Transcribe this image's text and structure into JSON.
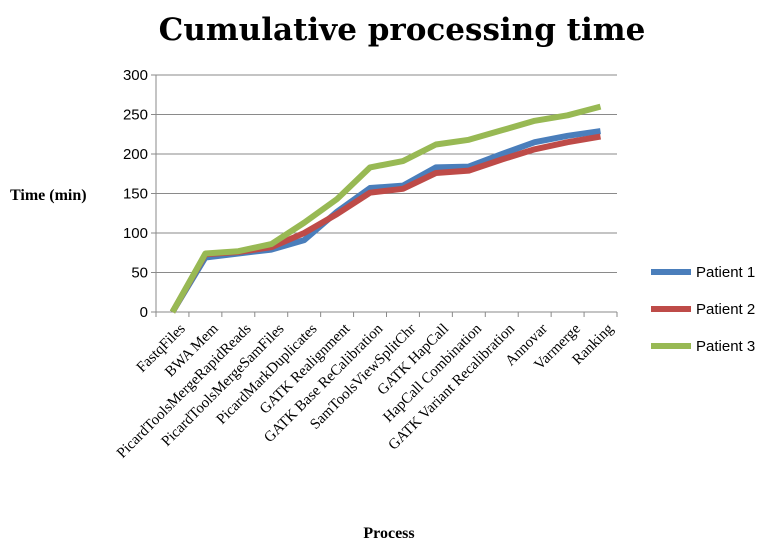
{
  "chart_data": {
    "type": "line",
    "title": "Cumulative processing time",
    "xlabel": "Process",
    "ylabel": "Time (min)",
    "ylim": [
      0,
      300
    ],
    "yticks": [
      0,
      50,
      100,
      150,
      200,
      250,
      300
    ],
    "grid": true,
    "legend_position": "right",
    "categories": [
      "FastqFiles",
      "BWA Mem",
      "PicardToolsMergeRapidReads",
      "PicardToolsMergeSamFiles",
      "PicardMarkDuplicates",
      "GATK Realignment",
      "GATK Base ReCalibration",
      "SamToolsViewSplitChr",
      "GATK HapCall",
      "HapCall Combination",
      "GATK Variant Recalibration",
      "Annovar",
      "Varmerge",
      "Ranking"
    ],
    "series": [
      {
        "name": "Patient 1",
        "color": "#4a7ebb",
        "values": [
          0,
          69,
          74,
          79,
          91,
          127,
          157,
          160,
          183,
          184,
          200,
          215,
          223,
          229
        ]
      },
      {
        "name": "Patient 2",
        "color": "#be4b48",
        "values": [
          0,
          73,
          76,
          82,
          100,
          124,
          151,
          156,
          176,
          179,
          193,
          206,
          215,
          222
        ]
      },
      {
        "name": "Patient 3",
        "color": "#98b954",
        "values": [
          0,
          74,
          77,
          86,
          113,
          143,
          183,
          191,
          212,
          218,
          230,
          242,
          249,
          260
        ]
      }
    ]
  }
}
